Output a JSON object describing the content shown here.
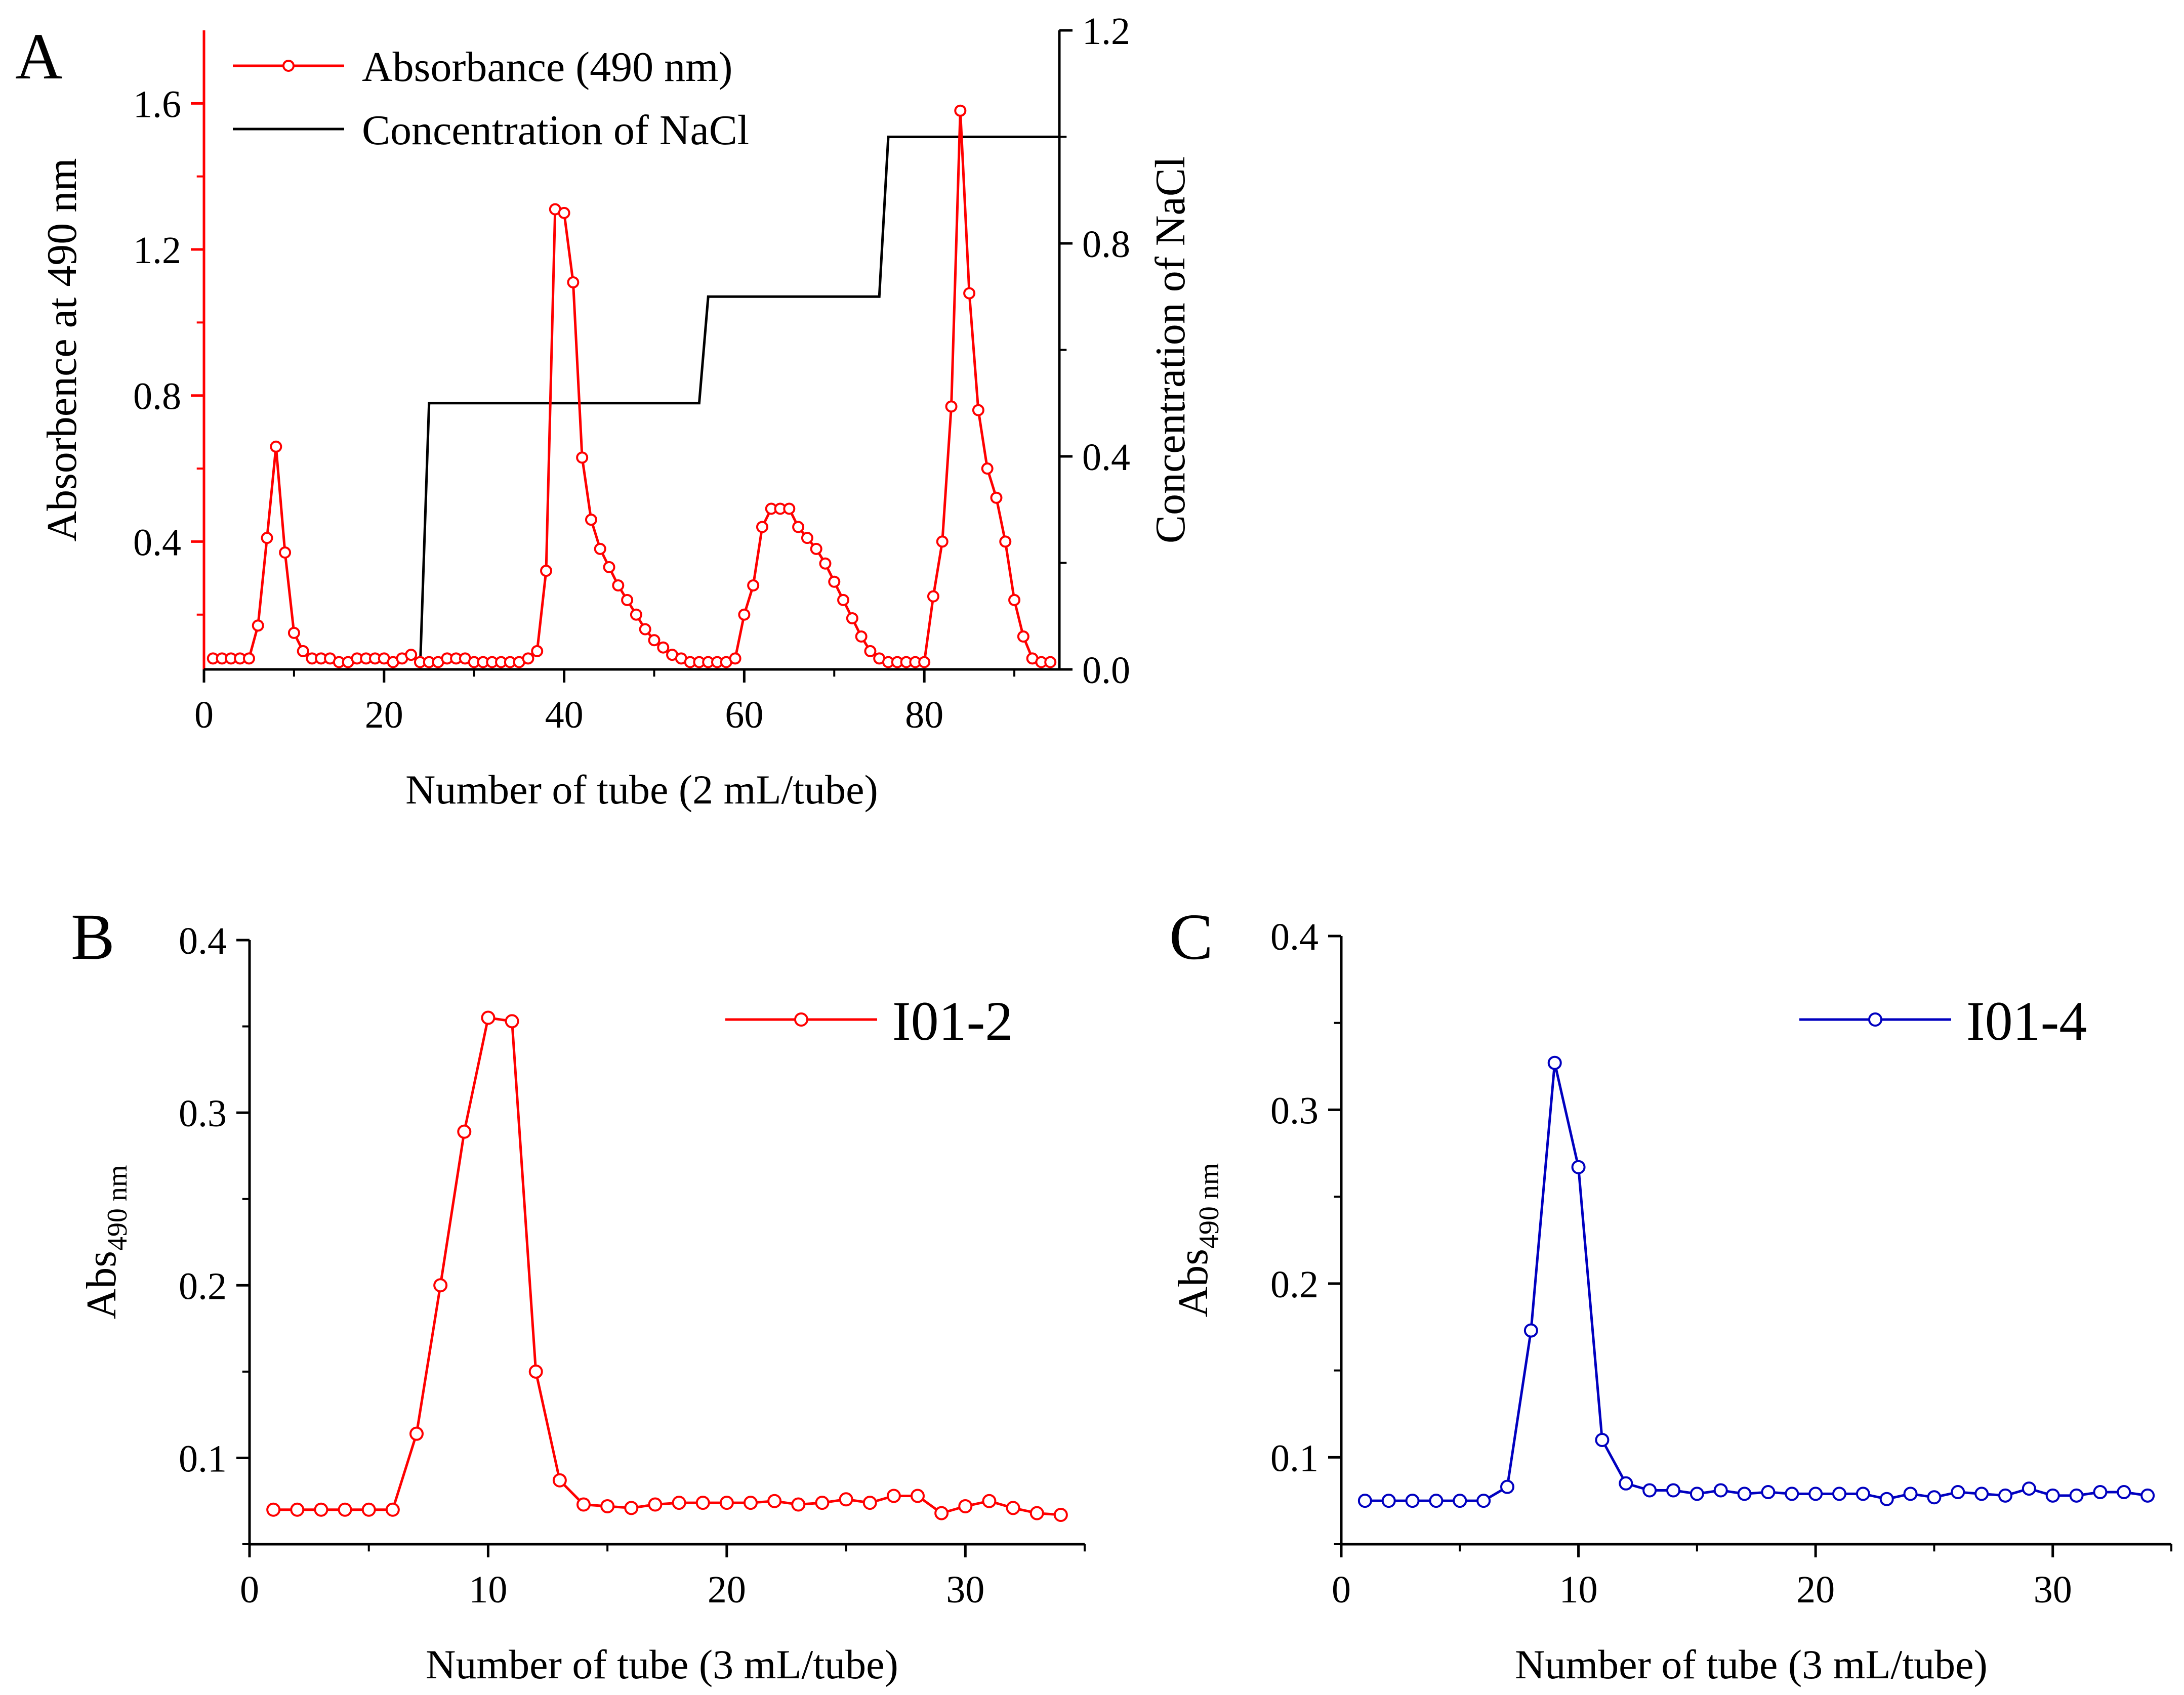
{
  "chart_data": [
    {
      "panel": "A",
      "type": "line",
      "xlabel": "Number of tube (2 mL/tube)",
      "ylabel": "Absorbence at 490 nm",
      "ylabel_right": "Concentration of NaCl",
      "xlim": [
        0,
        95
      ],
      "ylim": [
        0.05,
        1.8
      ],
      "ylim_right": [
        0.0,
        1.2
      ],
      "x_ticks": [
        0,
        20,
        40,
        60,
        80
      ],
      "y_ticks": [
        0.4,
        0.8,
        1.2,
        1.6
      ],
      "y_ticks_right": [
        0.0,
        0.4,
        0.8,
        1.2
      ],
      "legend_position": "top-left",
      "series": [
        {
          "name": "Absorbance (490 nm)",
          "color": "#ff0000",
          "marker": "circle",
          "axis": "left",
          "x": [
            1,
            2,
            3,
            4,
            5,
            6,
            7,
            8,
            9,
            10,
            11,
            12,
            13,
            14,
            15,
            16,
            17,
            18,
            19,
            20,
            21,
            22,
            23,
            24,
            25,
            26,
            27,
            28,
            29,
            30,
            31,
            32,
            33,
            34,
            35,
            36,
            37,
            38,
            39,
            40,
            41,
            42,
            43,
            44,
            45,
            46,
            47,
            48,
            49,
            50,
            51,
            52,
            53,
            54,
            55,
            56,
            57,
            58,
            59,
            60,
            61,
            62,
            63,
            64,
            65,
            66,
            67,
            68,
            69,
            70,
            71,
            72,
            73,
            74,
            75,
            76,
            77,
            78,
            79,
            80,
            81,
            82,
            83,
            84,
            85,
            86,
            87,
            88,
            89,
            90,
            91,
            92,
            93,
            94
          ],
          "values": [
            0.08,
            0.08,
            0.08,
            0.08,
            0.08,
            0.17,
            0.41,
            0.66,
            0.37,
            0.15,
            0.1,
            0.08,
            0.08,
            0.08,
            0.07,
            0.07,
            0.08,
            0.08,
            0.08,
            0.08,
            0.07,
            0.08,
            0.09,
            0.07,
            0.07,
            0.07,
            0.08,
            0.08,
            0.08,
            0.07,
            0.07,
            0.07,
            0.07,
            0.07,
            0.07,
            0.08,
            0.1,
            0.32,
            1.31,
            1.3,
            1.11,
            0.63,
            0.46,
            0.38,
            0.33,
            0.28,
            0.24,
            0.2,
            0.16,
            0.13,
            0.11,
            0.09,
            0.08,
            0.07,
            0.07,
            0.07,
            0.07,
            0.07,
            0.08,
            0.2,
            0.28,
            0.44,
            0.49,
            0.49,
            0.49,
            0.44,
            0.41,
            0.38,
            0.34,
            0.29,
            0.24,
            0.19,
            0.14,
            0.1,
            0.08,
            0.07,
            0.07,
            0.07,
            0.07,
            0.07,
            0.25,
            0.4,
            0.77,
            1.58,
            1.08,
            0.76,
            0.6,
            0.52,
            0.4,
            0.24,
            0.14,
            0.08,
            0.07,
            0.07
          ]
        },
        {
          "name": "Concentration of NaCl",
          "color": "#000000",
          "marker": "none",
          "axis": "right",
          "step_x": [
            24,
            24,
            25,
            55,
            55,
            56,
            75,
            75,
            76,
            95
          ],
          "step_y": [
            0.0,
            0.0,
            0.5,
            0.5,
            0.5,
            0.7,
            0.7,
            0.7,
            1.0,
            1.0
          ]
        }
      ]
    },
    {
      "panel": "B",
      "type": "line",
      "xlabel": "Number of tube (3 mL/tube)",
      "ylabel_main": "Abs",
      "ylabel_sub": "490 nm",
      "xlim": [
        0,
        35
      ],
      "ylim": [
        0.05,
        0.4
      ],
      "x_ticks": [
        0,
        10,
        20,
        30
      ],
      "y_ticks": [
        0.1,
        0.2,
        0.3,
        0.4
      ],
      "legend_position": "top-right",
      "series": [
        {
          "name": "I01-2",
          "color": "#ff0000",
          "marker": "circle",
          "x": [
            1,
            2,
            3,
            4,
            5,
            6,
            7,
            8,
            9,
            10,
            11,
            12,
            13,
            14,
            15,
            16,
            17,
            18,
            19,
            20,
            21,
            22,
            23,
            24,
            25,
            26,
            27,
            28,
            29,
            30,
            31,
            32,
            33,
            34
          ],
          "values": [
            0.07,
            0.07,
            0.07,
            0.07,
            0.07,
            0.07,
            0.114,
            0.2,
            0.289,
            0.355,
            0.353,
            0.15,
            0.087,
            0.073,
            0.072,
            0.071,
            0.073,
            0.074,
            0.074,
            0.074,
            0.074,
            0.075,
            0.073,
            0.074,
            0.076,
            0.074,
            0.078,
            0.078,
            0.068,
            0.072,
            0.075,
            0.071,
            0.068,
            0.067
          ]
        }
      ]
    },
    {
      "panel": "C",
      "type": "line",
      "xlabel": "Number of tube (3 mL/tube)",
      "ylabel_main": "Abs",
      "ylabel_sub": "490 nm",
      "xlim": [
        0,
        35
      ],
      "ylim": [
        0.05,
        0.4
      ],
      "x_ticks": [
        0,
        10,
        20,
        30
      ],
      "y_ticks": [
        0.1,
        0.2,
        0.3,
        0.4
      ],
      "legend_position": "top-right",
      "series": [
        {
          "name": "I01-4",
          "color": "#0000c0",
          "marker": "circle",
          "x": [
            1,
            2,
            3,
            4,
            5,
            6,
            7,
            8,
            9,
            10,
            11,
            12,
            13,
            14,
            15,
            16,
            17,
            18,
            19,
            20,
            21,
            22,
            23,
            24,
            25,
            26,
            27,
            28,
            29,
            30,
            31,
            32,
            33,
            34
          ],
          "values": [
            0.075,
            0.075,
            0.075,
            0.075,
            0.075,
            0.075,
            0.083,
            0.173,
            0.327,
            0.267,
            0.11,
            0.085,
            0.081,
            0.081,
            0.079,
            0.081,
            0.079,
            0.08,
            0.079,
            0.079,
            0.079,
            0.079,
            0.076,
            0.079,
            0.077,
            0.08,
            0.079,
            0.078,
            0.082,
            0.078,
            0.078,
            0.08,
            0.08,
            0.078
          ]
        }
      ]
    }
  ]
}
